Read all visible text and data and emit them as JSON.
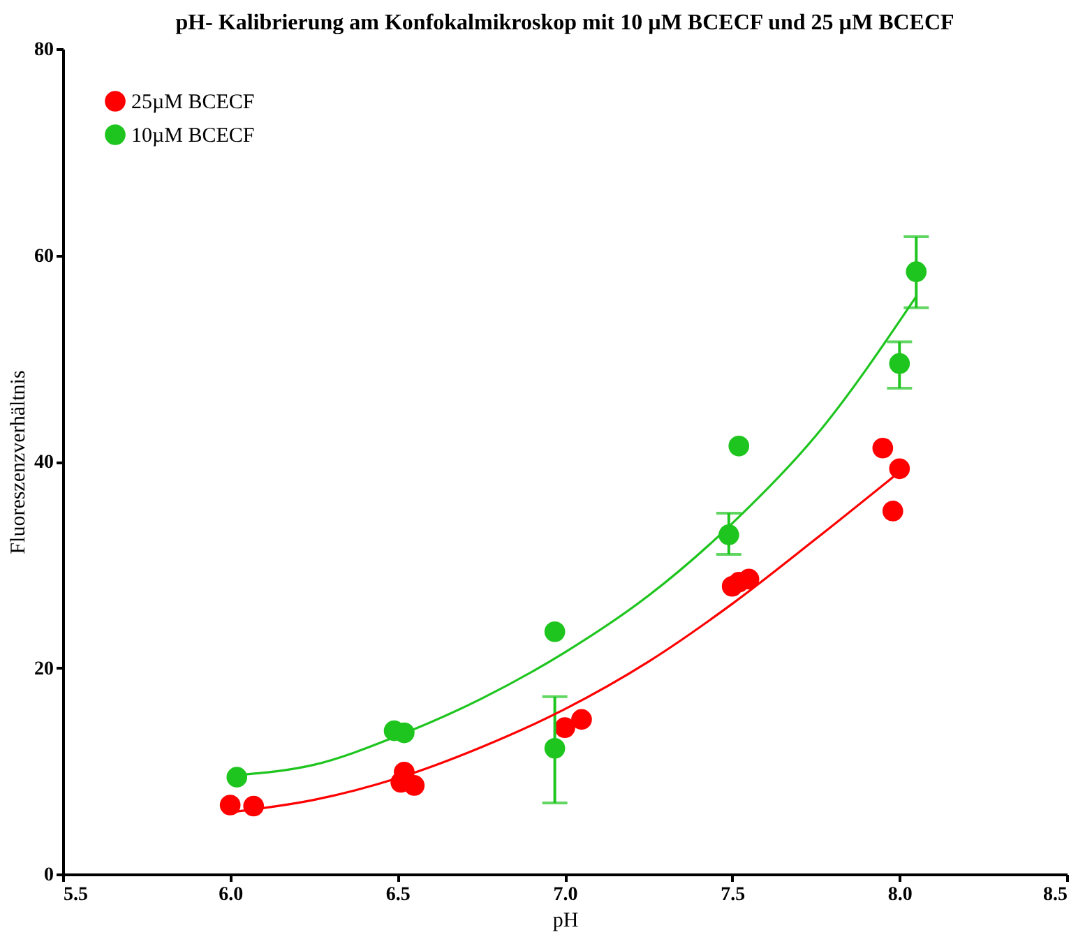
{
  "chart_data": {
    "type": "scatter",
    "title": "pH- Kalibrierung am Konfokalmikroskop mit 10 µM BCECF und 25 µM BCECF",
    "xlabel": "pH",
    "ylabel": "Fluoreszenzverhältnis",
    "xlim": [
      5.5,
      8.5
    ],
    "xticks": [
      5.5,
      {
        "value": 6,
        "label": "6.0"
      },
      6.5,
      {
        "value": 7,
        "label": "7.0"
      },
      7.5,
      {
        "value": 8,
        "label": "8.0"
      },
      8.5
    ],
    "ylim": [
      0,
      80
    ],
    "yticks": [
      0,
      20,
      40,
      60,
      80
    ],
    "grid": false,
    "legend": "top left",
    "series": [
      {
        "name": "25µM BCECF",
        "color": "#ff0000",
        "marker": "circle",
        "x": [
          6.0,
          6.07,
          6.51,
          6.52,
          6.55,
          7.0,
          7.05,
          7.5,
          7.52,
          7.55,
          7.95,
          8.0,
          7.98
        ],
        "values": [
          6.7,
          6.6,
          8.9,
          9.9,
          8.6,
          14.2,
          15.0,
          27.9,
          28.3,
          28.6,
          41.3,
          39.3,
          35.2
        ]
      },
      {
        "name": "10µM BCECF",
        "color": "#1fc51f",
        "marker": "circle",
        "x": [
          6.02,
          6.49,
          6.52,
          6.97,
          6.97,
          7.49,
          7.52,
          8.0,
          8.05
        ],
        "values": [
          9.4,
          13.9,
          13.7,
          23.5,
          12.2,
          32.9,
          41.5,
          49.5,
          58.4
        ],
        "errors": [
          null,
          null,
          null,
          null,
          [
            6.9,
            17.2
          ],
          [
            31.0,
            35.0
          ],
          null,
          [
            47.1,
            51.6
          ],
          [
            54.9,
            61.8
          ]
        ]
      },
      {
        "type": "line",
        "color": "#ff0000",
        "line_style": "solid",
        "marker": "none",
        "x": [
          6.0,
          6.25,
          6.5,
          6.75,
          7.0,
          7.25,
          7.5,
          7.75,
          8.0
        ],
        "values": [
          6.0,
          7.2,
          9.3,
          12.3,
          16.0,
          20.6,
          26.2,
          32.5,
          39.0
        ]
      },
      {
        "type": "line",
        "color": "#1fc51f",
        "line_style": "solid",
        "marker": "none",
        "x": [
          6.02,
          6.25,
          6.5,
          6.75,
          7.0,
          7.25,
          7.5,
          7.75,
          8.05
        ],
        "values": [
          9.6,
          10.6,
          13.4,
          17.0,
          21.5,
          27.0,
          34.0,
          42.5,
          56.0
        ]
      }
    ]
  }
}
